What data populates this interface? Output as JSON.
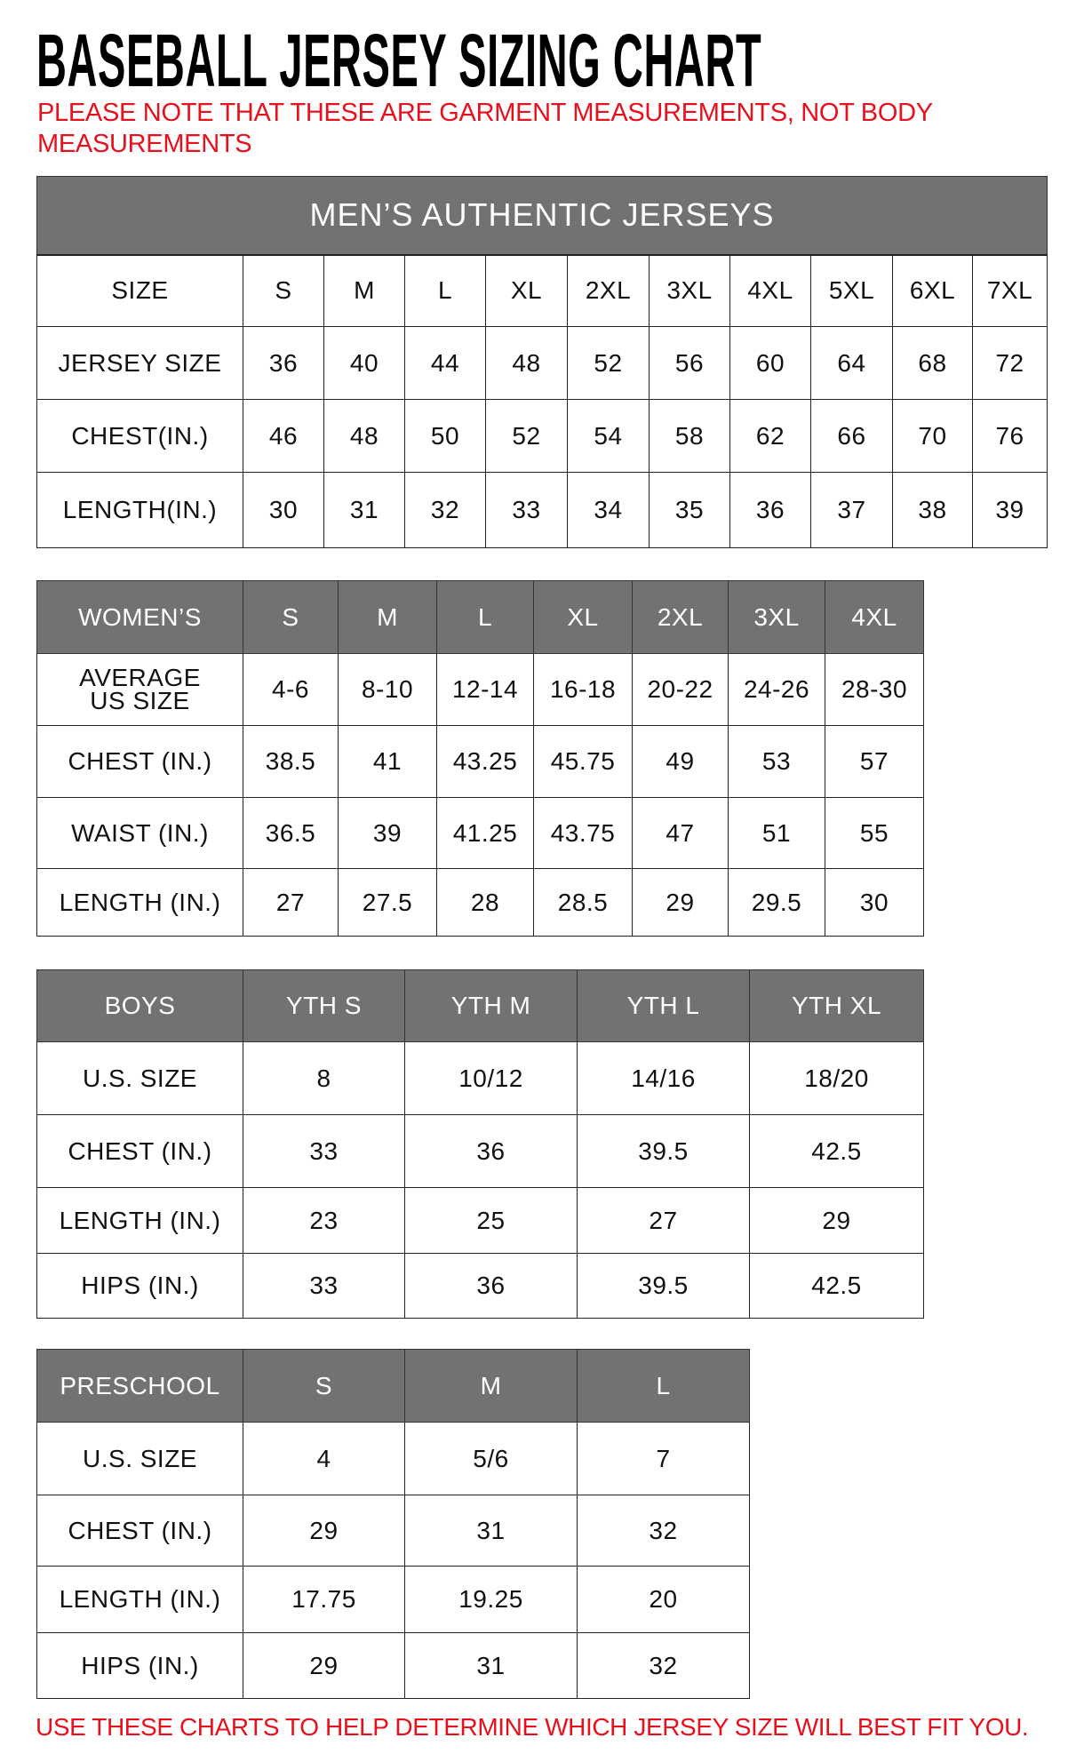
{
  "title": "BASEBALL JERSEY SIZING CHART",
  "note": "PLEASE NOTE THAT THESE ARE GARMENT MEASUREMENTS, NOT BODY MEASUREMENTS",
  "footer": "USE THESE CHARTS TO HELP DETERMINE WHICH JERSEY SIZE WILL BEST FIT YOU.",
  "colors": {
    "header_bg": "#727272",
    "note_red": "#e8101c"
  },
  "tables": [
    {
      "banner": "MEN’S AUTHENTIC JERSEYS",
      "header": [
        "SIZE",
        "S",
        "M",
        "L",
        "XL",
        "2XL",
        "3XL",
        "4XL",
        "5XL",
        "6XL",
        "7XL"
      ],
      "header_highlight": false,
      "rows": [
        [
          "JERSEY SIZE",
          "36",
          "40",
          "44",
          "48",
          "52",
          "56",
          "60",
          "64",
          "68",
          "72"
        ],
        [
          "CHEST(IN.)",
          "46",
          "48",
          "50",
          "52",
          "54",
          "58",
          "62",
          "66",
          "70",
          "76"
        ],
        [
          "LENGTH(IN.)",
          "30",
          "31",
          "32",
          "33",
          "34",
          "35",
          "36",
          "37",
          "38",
          "39"
        ]
      ]
    },
    {
      "header": [
        "WOMEN’S",
        "S",
        "M",
        "L",
        "XL",
        "2XL",
        "3XL",
        "4XL"
      ],
      "header_highlight": true,
      "rows": [
        [
          "AVERAGE US SIZE",
          "4-6",
          "8-10",
          "12-14",
          "16-18",
          "20-22",
          "24-26",
          "28-30"
        ],
        [
          "CHEST (IN.)",
          "38.5",
          "41",
          "43.25",
          "45.75",
          "49",
          "53",
          "57"
        ],
        [
          "WAIST (IN.)",
          "36.5",
          "39",
          "41.25",
          "43.75",
          "47",
          "51",
          "55"
        ],
        [
          "LENGTH (IN.)",
          "27",
          "27.5",
          "28",
          "28.5",
          "29",
          "29.5",
          "30"
        ]
      ]
    },
    {
      "header": [
        "BOYS",
        "YTH S",
        "YTH M",
        "YTH L",
        "YTH XL"
      ],
      "header_highlight": true,
      "rows": [
        [
          "U.S. SIZE",
          "8",
          "10/12",
          "14/16",
          "18/20"
        ],
        [
          "CHEST (IN.)",
          "33",
          "36",
          "39.5",
          "42.5"
        ],
        [
          "LENGTH (IN.)",
          "23",
          "25",
          "27",
          "29"
        ],
        [
          "HIPS (IN.)",
          "33",
          "36",
          "39.5",
          "42.5"
        ]
      ]
    },
    {
      "header": [
        "PRESCHOOL",
        "S",
        "M",
        "L"
      ],
      "header_highlight": true,
      "rows": [
        [
          "U.S. SIZE",
          "4",
          "5/6",
          "7"
        ],
        [
          "CHEST (IN.)",
          "29",
          "31",
          "32"
        ],
        [
          "LENGTH (IN.)",
          "17.75",
          "19.25",
          "20"
        ],
        [
          "HIPS (IN.)",
          "29",
          "31",
          "32"
        ]
      ]
    }
  ]
}
